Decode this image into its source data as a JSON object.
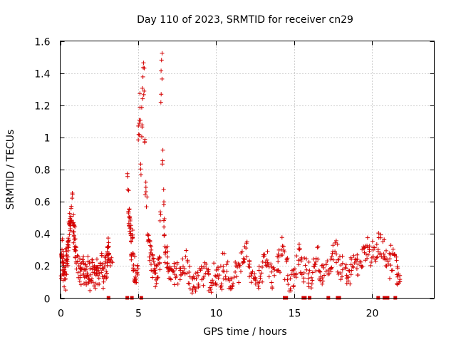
{
  "chart_data": {
    "type": "scatter",
    "title": "Day 110 of 2023, SRMTID for receiver cn29",
    "xlabel": "GPS time / hours",
    "ylabel": "SRMTID / TECUs",
    "xlim": [
      0,
      24
    ],
    "ylim": [
      0,
      1.6
    ],
    "xticks": [
      0,
      5,
      10,
      15,
      20
    ],
    "xtick_labels": [
      "0",
      "5",
      "10",
      "15",
      "20"
    ],
    "yticks": [
      0,
      0.2,
      0.4,
      0.6,
      0.8,
      1.0,
      1.2,
      1.4,
      1.6
    ],
    "ytick_labels": [
      "0",
      "0.2",
      "0.4",
      "0.6",
      "0.8",
      "1",
      "1.2",
      "1.4",
      "1.6"
    ],
    "grid": true,
    "marker": "+",
    "color": "#d40000",
    "series": [
      {
        "name": "SRMTID",
        "description": "dense cloud of points, approx values per time bin",
        "x": [
          0.05,
          0.1,
          0.15,
          0.2,
          0.25,
          0.3,
          0.35,
          0.4,
          0.45,
          0.5,
          0.55,
          0.6,
          0.65,
          0.7,
          0.75,
          0.8,
          0.85,
          0.9,
          0.95,
          1.0,
          1.1,
          1.2,
          1.3,
          1.4,
          1.5,
          1.6,
          1.7,
          1.8,
          1.9,
          2.0,
          2.1,
          2.2,
          2.3,
          2.4,
          2.5,
          2.6,
          2.7,
          2.8,
          2.9,
          3.0,
          3.05,
          3.1,
          3.15,
          4.3,
          4.35,
          4.4,
          4.45,
          4.5,
          4.55,
          4.6,
          4.65,
          4.7,
          4.8,
          4.9,
          5.0,
          5.05,
          5.1,
          5.15,
          5.2,
          5.25,
          5.3,
          5.35,
          5.4,
          5.45,
          5.5,
          5.6,
          5.7,
          5.8,
          5.9,
          6.0,
          6.1,
          6.2,
          6.3,
          6.4,
          6.45,
          6.5,
          6.55,
          6.6,
          6.65,
          6.7,
          6.8,
          6.9,
          7.0,
          7.2,
          7.4,
          7.6,
          7.8,
          8.0,
          8.2,
          8.4,
          8.6,
          8.8,
          9.0,
          9.2,
          9.4,
          9.6,
          9.8,
          10.0,
          10.2,
          10.4,
          10.6,
          10.8,
          11.0,
          11.2,
          11.4,
          11.6,
          11.8,
          12.0,
          12.2,
          12.4,
          12.6,
          12.8,
          13.0,
          13.2,
          13.4,
          13.6,
          13.8,
          14.0,
          14.2,
          14.4,
          14.6,
          14.8,
          15.0,
          15.2,
          15.4,
          15.6,
          15.8,
          16.0,
          16.2,
          16.4,
          16.6,
          16.8,
          17.0,
          17.2,
          17.4,
          17.6,
          17.8,
          18.0,
          18.2,
          18.4,
          18.6,
          18.8,
          19.0,
          19.2,
          19.4,
          19.6,
          19.8,
          20.0,
          20.2,
          20.4,
          20.6,
          20.8,
          21.0,
          21.2,
          21.4,
          21.6,
          21.7
        ],
        "y": [
          0.2,
          0.3,
          0.18,
          0.22,
          0.15,
          0.12,
          0.25,
          0.2,
          0.28,
          0.35,
          0.4,
          0.45,
          0.5,
          0.55,
          0.6,
          0.45,
          0.4,
          0.38,
          0.3,
          0.25,
          0.2,
          0.18,
          0.15,
          0.22,
          0.17,
          0.14,
          0.2,
          0.16,
          0.12,
          0.18,
          0.15,
          0.14,
          0.19,
          0.13,
          0.16,
          0.21,
          0.14,
          0.18,
          0.2,
          0.25,
          0.3,
          0.28,
          0.22,
          0.75,
          0.6,
          0.5,
          0.45,
          0.4,
          0.3,
          0.35,
          0.25,
          0.18,
          0.15,
          0.2,
          1.0,
          1.05,
          1.24,
          0.8,
          1.1,
          1.2,
          1.37,
          1.3,
          0.95,
          0.7,
          0.6,
          0.4,
          0.3,
          0.25,
          0.2,
          0.18,
          0.15,
          0.2,
          0.22,
          0.52,
          1.3,
          1.4,
          0.85,
          0.65,
          0.45,
          0.3,
          0.25,
          0.2,
          0.18,
          0.16,
          0.15,
          0.18,
          0.2,
          0.22,
          0.12,
          0.1,
          0.08,
          0.12,
          0.15,
          0.18,
          0.12,
          0.1,
          0.14,
          0.16,
          0.12,
          0.2,
          0.15,
          0.1,
          0.13,
          0.18,
          0.16,
          0.22,
          0.3,
          0.2,
          0.15,
          0.12,
          0.14,
          0.18,
          0.2,
          0.22,
          0.15,
          0.12,
          0.2,
          0.24,
          0.3,
          0.18,
          0.12,
          0.15,
          0.2,
          0.28,
          0.22,
          0.18,
          0.15,
          0.12,
          0.2,
          0.25,
          0.18,
          0.16,
          0.2,
          0.22,
          0.25,
          0.3,
          0.18,
          0.2,
          0.14,
          0.15,
          0.18,
          0.2,
          0.22,
          0.25,
          0.28,
          0.3,
          0.26,
          0.32,
          0.28,
          0.34,
          0.3,
          0.22,
          0.2,
          0.25,
          0.3,
          0.12,
          0.1
        ],
        "zero_markers_x": [
          3.1,
          4.3,
          4.6,
          5.2,
          14.4,
          14.5,
          15.6,
          15.7,
          16.0,
          17.2,
          17.8,
          17.9,
          20.4,
          20.8,
          20.9,
          21.0,
          21.5
        ]
      }
    ]
  }
}
